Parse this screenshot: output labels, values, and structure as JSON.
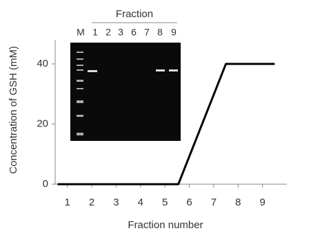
{
  "chart_data": {
    "type": "line",
    "x_label": "Fraction number",
    "y_label": "Concentration of GSH (mM)",
    "x": [
      0.6,
      5.55,
      7.5,
      9.5
    ],
    "values": [
      0,
      0,
      40,
      40
    ],
    "color": "#000000",
    "xlim": [
      0.5,
      10
    ],
    "xticks": [
      1,
      2,
      3,
      4,
      5,
      6,
      7,
      8,
      9
    ],
    "ylim": [
      0,
      48
    ],
    "yticks": [
      0,
      20,
      40
    ],
    "inset": {
      "title": "Fraction",
      "lanes": [
        "M",
        "1",
        "2",
        "3",
        "6",
        "7",
        "8",
        "9"
      ]
    }
  }
}
